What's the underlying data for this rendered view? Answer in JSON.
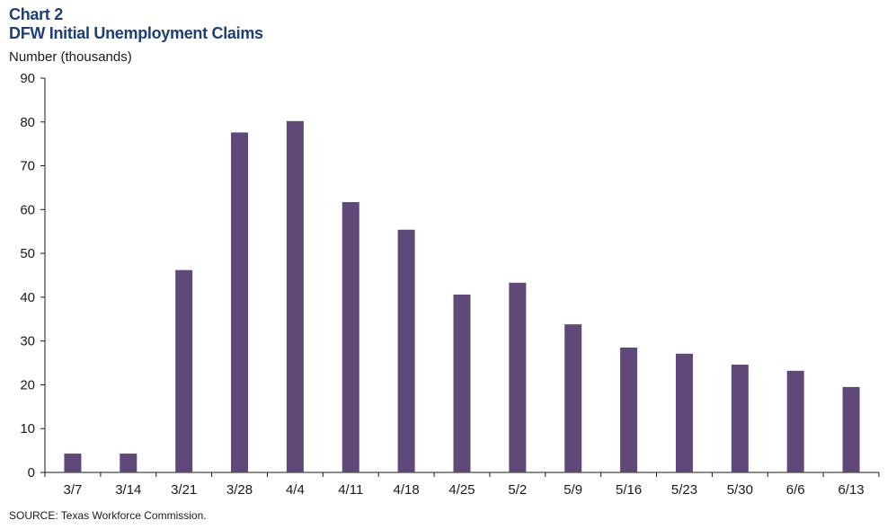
{
  "header": {
    "title_line1": "Chart 2",
    "title_line2": "DFW Initial Unemployment Claims"
  },
  "footer": {
    "source": "SOURCE: Texas Workforce Commission."
  },
  "colors": {
    "bar": "#604878",
    "title": "#1f3f73",
    "axis": "#1a1a1a"
  },
  "chart_data": {
    "type": "bar",
    "title": "DFW Initial Unemployment Claims",
    "ylabel": "Number (thousands)",
    "xlabel": "",
    "categories": [
      "3/7",
      "3/14",
      "3/21",
      "3/28",
      "4/4",
      "4/11",
      "4/18",
      "4/25",
      "5/2",
      "5/9",
      "5/16",
      "5/23",
      "5/30",
      "6/6",
      "6/13"
    ],
    "values": [
      4.3,
      4.3,
      46.2,
      77.6,
      80.2,
      61.7,
      55.4,
      40.6,
      43.3,
      33.8,
      28.5,
      27.1,
      24.6,
      23.2,
      19.5
    ],
    "ylim": [
      0,
      90
    ],
    "yticks": [
      0,
      10,
      20,
      30,
      40,
      50,
      60,
      70,
      80,
      90
    ],
    "grid": false,
    "legend": "none"
  }
}
